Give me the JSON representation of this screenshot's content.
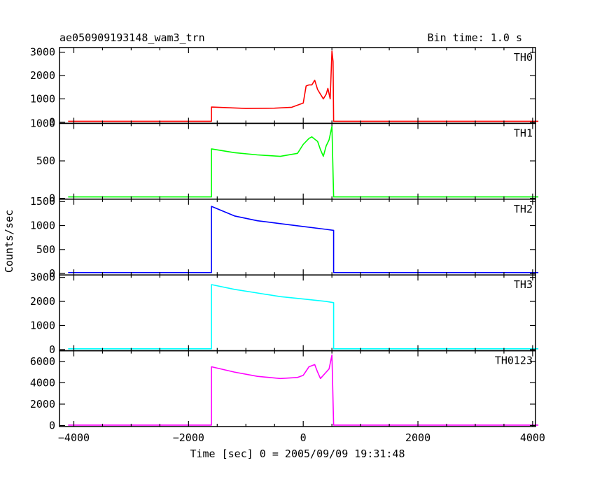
{
  "header": {
    "title": "ae050909193148_wam3_trn",
    "bin_time": "Bin time: 1.0 s"
  },
  "axes": {
    "xlabel": "Time [sec] 0 = 2005/09/09 19:31:48",
    "ylabel": "Counts/sec"
  },
  "chart_data": {
    "type": "line",
    "title": "ae050909193148_wam3_trn",
    "xlabel": "Time [sec] 0 = 2005/09/09 19:31:48",
    "ylabel": "Counts/sec",
    "xlim": [
      -4250,
      4050
    ],
    "x_ticks": [
      -4000,
      -2000,
      0,
      2000,
      4000
    ],
    "x_tick_labels": [
      "−4000",
      "−2000",
      "0",
      "2000",
      "4000"
    ],
    "grid": false,
    "panels": [
      {
        "name": "TH0",
        "color": "#ff0000",
        "ylim": [
          -50,
          3200
        ],
        "y_ticks": [
          0,
          1000,
          2000,
          3000
        ],
        "y_tick_labels": [
          "0",
          "1000",
          "2000",
          "3000"
        ],
        "x": [
          -4100,
          -1600,
          -1600,
          -1000,
          -500,
          -200,
          0,
          50,
          100,
          150,
          200,
          250,
          300,
          350,
          400,
          430,
          470,
          500,
          520,
          530,
          4100
        ],
        "y": [
          40,
          40,
          650,
          590,
          600,
          640,
          820,
          1550,
          1600,
          1600,
          1800,
          1400,
          1200,
          1000,
          1200,
          1450,
          1000,
          3050,
          2600,
          40,
          40
        ]
      },
      {
        "name": "TH1",
        "color": "#00ff00",
        "ylim": [
          -10,
          1000
        ],
        "y_ticks": [
          0,
          500,
          1000
        ],
        "y_tick_labels": [
          "0",
          "500",
          "1000"
        ],
        "x": [
          -4100,
          -1600,
          -1600,
          -1200,
          -800,
          -400,
          -100,
          0,
          100,
          150,
          250,
          300,
          350,
          400,
          450,
          500,
          530,
          4100
        ],
        "y": [
          20,
          20,
          660,
          610,
          580,
          560,
          600,
          720,
          800,
          820,
          760,
          650,
          560,
          700,
          780,
          960,
          20,
          20
        ]
      },
      {
        "name": "TH2",
        "color": "#0000ff",
        "ylim": [
          -30,
          1550
        ],
        "y_ticks": [
          0,
          500,
          1000,
          1500
        ],
        "y_tick_labels": [
          "0",
          "500",
          "1000",
          "1500"
        ],
        "x": [
          -4100,
          -1600,
          -1600,
          -1200,
          -800,
          -400,
          0,
          400,
          530,
          530,
          4100
        ],
        "y": [
          20,
          20,
          1400,
          1200,
          1100,
          1040,
          980,
          920,
          900,
          20,
          20
        ]
      },
      {
        "name": "TH3",
        "color": "#00ffff",
        "ylim": [
          -50,
          3100
        ],
        "y_ticks": [
          0,
          1000,
          2000,
          3000
        ],
        "y_tick_labels": [
          "0",
          "1000",
          "2000",
          "3000"
        ],
        "x": [
          -4100,
          -1600,
          -1600,
          -1200,
          -800,
          -400,
          0,
          400,
          530,
          530,
          4100
        ],
        "y": [
          30,
          30,
          2700,
          2500,
          2350,
          2200,
          2100,
          2000,
          1950,
          30,
          30
        ]
      },
      {
        "name": "TH0123",
        "color": "#ff00ff",
        "ylim": [
          -100,
          7000
        ],
        "y_ticks": [
          0,
          2000,
          4000,
          6000
        ],
        "y_tick_labels": [
          "0",
          "2000",
          "4000",
          "6000"
        ],
        "x": [
          -4100,
          -1600,
          -1600,
          -1200,
          -800,
          -400,
          -100,
          0,
          100,
          200,
          250,
          300,
          400,
          450,
          500,
          530,
          4100
        ],
        "y": [
          40,
          40,
          5500,
          5000,
          4600,
          4400,
          4500,
          4700,
          5500,
          5700,
          5000,
          4400,
          5000,
          5300,
          6600,
          40,
          40
        ]
      }
    ]
  }
}
